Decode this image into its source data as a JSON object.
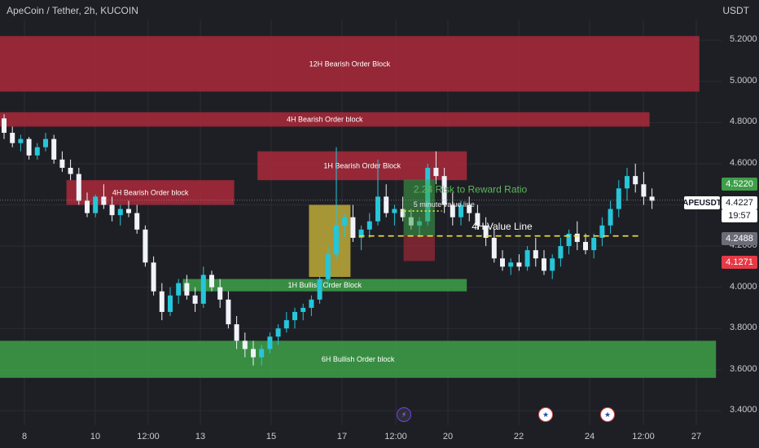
{
  "header": {
    "title": "ApeCoin / Tether, 2h, KUCOIN",
    "unit": "USDT"
  },
  "price_axis": [
    "5.2000",
    "5.0000",
    "4.8000",
    "4.6000",
    "4.4000",
    "4.2000",
    "4.0000",
    "3.8000",
    "3.6000",
    "3.4000"
  ],
  "time_axis": [
    "8",
    "10",
    "12:00",
    "13",
    "15",
    "17",
    "12:00",
    "20",
    "22",
    "24",
    "12:00",
    "27"
  ],
  "price_tags": {
    "symbol": "APEUSDT",
    "last": "4.4227",
    "timer": "19:57",
    "take_profit": "4.5220",
    "value_line": "4.2488",
    "stop_loss": "4.1271"
  },
  "events": {
    "bolt": "bolt-icon",
    "flags": [
      "us-flag-icon",
      "us-flag-icon"
    ]
  },
  "chart_data": {
    "type": "candlestick",
    "title": "ApeCoin / Tether, 2h, KUCOIN",
    "ylabel": "USDT",
    "ylim": [
      3.33,
      5.3
    ],
    "colors": {
      "up": "#26c6da",
      "down": "#f0f3fa",
      "bearish_zone": "#b02a3a",
      "bullish_zone": "#3fa64a",
      "consolidation": "#c8b43a"
    },
    "candles": [
      [
        4.82,
        4.84,
        4.72,
        4.75
      ],
      [
        4.75,
        4.78,
        4.68,
        4.7
      ],
      [
        4.7,
        4.74,
        4.66,
        4.72
      ],
      [
        4.72,
        4.73,
        4.62,
        4.64
      ],
      [
        4.64,
        4.7,
        4.62,
        4.68
      ],
      [
        4.68,
        4.75,
        4.66,
        4.72
      ],
      [
        4.72,
        4.74,
        4.6,
        4.62
      ],
      [
        4.62,
        4.66,
        4.56,
        4.58
      ],
      [
        4.58,
        4.62,
        4.52,
        4.55
      ],
      [
        4.55,
        4.58,
        4.4,
        4.42
      ],
      [
        4.42,
        4.46,
        4.34,
        4.36
      ],
      [
        4.36,
        4.45,
        4.34,
        4.44
      ],
      [
        4.44,
        4.5,
        4.38,
        4.4
      ],
      [
        4.4,
        4.44,
        4.32,
        4.35
      ],
      [
        4.35,
        4.4,
        4.3,
        4.38
      ],
      [
        4.38,
        4.42,
        4.34,
        4.36
      ],
      [
        4.36,
        4.4,
        4.26,
        4.28
      ],
      [
        4.28,
        4.3,
        4.1,
        4.12
      ],
      [
        4.12,
        4.15,
        3.96,
        3.98
      ],
      [
        3.98,
        4.02,
        3.84,
        3.88
      ],
      [
        3.88,
        4.0,
        3.86,
        3.96
      ],
      [
        3.96,
        4.04,
        3.92,
        4.02
      ],
      [
        4.02,
        4.06,
        3.94,
        3.96
      ],
      [
        3.96,
        4.0,
        3.88,
        3.92
      ],
      [
        3.92,
        4.1,
        3.9,
        4.06
      ],
      [
        4.06,
        4.08,
        3.98,
        4.0
      ],
      [
        4.0,
        4.04,
        3.9,
        3.94
      ],
      [
        3.94,
        3.98,
        3.8,
        3.82
      ],
      [
        3.82,
        3.86,
        3.7,
        3.74
      ],
      [
        3.74,
        3.78,
        3.66,
        3.7
      ],
      [
        3.7,
        3.74,
        3.62,
        3.66
      ],
      [
        3.66,
        3.72,
        3.62,
        3.7
      ],
      [
        3.7,
        3.78,
        3.68,
        3.76
      ],
      [
        3.76,
        3.82,
        3.72,
        3.8
      ],
      [
        3.8,
        3.88,
        3.78,
        3.84
      ],
      [
        3.84,
        3.9,
        3.8,
        3.88
      ],
      [
        3.88,
        3.92,
        3.84,
        3.9
      ],
      [
        3.9,
        3.96,
        3.86,
        3.94
      ],
      [
        3.94,
        4.06,
        3.92,
        4.04
      ],
      [
        4.04,
        4.2,
        4.0,
        4.16
      ],
      [
        4.16,
        4.68,
        4.14,
        4.3
      ],
      [
        4.3,
        4.36,
        4.24,
        4.34
      ],
      [
        4.34,
        4.4,
        4.22,
        4.24
      ],
      [
        4.24,
        4.3,
        4.18,
        4.28
      ],
      [
        4.28,
        4.36,
        4.24,
        4.32
      ],
      [
        4.32,
        4.62,
        4.3,
        4.44
      ],
      [
        4.44,
        4.5,
        4.34,
        4.36
      ],
      [
        4.36,
        4.4,
        4.3,
        4.38
      ],
      [
        4.38,
        4.44,
        4.32,
        4.34
      ],
      [
        4.34,
        4.38,
        4.28,
        4.3
      ],
      [
        4.3,
        4.34,
        4.24,
        4.32
      ],
      [
        4.32,
        4.6,
        4.3,
        4.58
      ],
      [
        4.58,
        4.66,
        4.5,
        4.54
      ],
      [
        4.54,
        4.58,
        4.36,
        4.4
      ],
      [
        4.4,
        4.46,
        4.3,
        4.34
      ],
      [
        4.34,
        4.42,
        4.3,
        4.4
      ],
      [
        4.4,
        4.44,
        4.32,
        4.36
      ],
      [
        4.36,
        4.4,
        4.28,
        4.3
      ],
      [
        4.3,
        4.34,
        4.2,
        4.24
      ],
      [
        4.24,
        4.28,
        4.12,
        4.14
      ],
      [
        4.14,
        4.18,
        4.08,
        4.1
      ],
      [
        4.1,
        4.14,
        4.06,
        4.12
      ],
      [
        4.12,
        4.16,
        4.08,
        4.1
      ],
      [
        4.1,
        4.2,
        4.08,
        4.18
      ],
      [
        4.18,
        4.24,
        4.1,
        4.14
      ],
      [
        4.14,
        4.18,
        4.06,
        4.08
      ],
      [
        4.08,
        4.16,
        4.04,
        4.14
      ],
      [
        4.14,
        4.24,
        4.1,
        4.2
      ],
      [
        4.2,
        4.28,
        4.16,
        4.26
      ],
      [
        4.26,
        4.32,
        4.18,
        4.22
      ],
      [
        4.22,
        4.26,
        4.16,
        4.18
      ],
      [
        4.18,
        4.26,
        4.14,
        4.24
      ],
      [
        4.24,
        4.34,
        4.2,
        4.3
      ],
      [
        4.3,
        4.42,
        4.26,
        4.38
      ],
      [
        4.38,
        4.52,
        4.34,
        4.48
      ],
      [
        4.48,
        4.58,
        4.42,
        4.54
      ],
      [
        4.54,
        4.6,
        4.46,
        4.5
      ],
      [
        4.5,
        4.56,
        4.4,
        4.44
      ],
      [
        4.44,
        4.48,
        4.38,
        4.42
      ]
    ],
    "zones": [
      {
        "label": "12H Bearish Order Block",
        "x0": 0,
        "x1": 84,
        "y0": 4.95,
        "y1": 5.22,
        "kind": "bearish"
      },
      {
        "label": "4H Bearish Order block",
        "x0": 0,
        "x1": 78,
        "y0": 4.78,
        "y1": 4.85,
        "kind": "bearish"
      },
      {
        "label": "4H Bearish Order block",
        "x0": 8,
        "x1": 28,
        "y0": 4.4,
        "y1": 4.52,
        "kind": "bearish"
      },
      {
        "label": "1H Bearish Order Block",
        "x0": 31,
        "x1": 56,
        "y0": 4.52,
        "y1": 4.66,
        "kind": "bearish"
      },
      {
        "label": "1H Bullish Order Block",
        "x0": 22,
        "x1": 56,
        "y0": 3.98,
        "y1": 4.04,
        "kind": "bullish"
      },
      {
        "label": "6H Bullish Order block",
        "x0": 0,
        "x1": 86,
        "y0": 3.56,
        "y1": 3.74,
        "kind": "bullish"
      }
    ],
    "consolidation_box": {
      "x0": 37,
      "x1": 42,
      "y0": 4.05,
      "y1": 4.4
    },
    "annotations": [
      {
        "text": "2.24 Risk to Reward Ratio",
        "x": 49,
        "y": 4.46,
        "color": "#5cb85c"
      },
      {
        "text": "5 minute value line",
        "x": 49,
        "y": 4.39,
        "color": "#e6e6e6"
      },
      {
        "text": "4H Value Line",
        "x": 56,
        "y": 4.28,
        "color": "#ffffff"
      }
    ],
    "lines": [
      {
        "name": "4H Value Line",
        "y": 4.2488,
        "x0": 43,
        "x1": 77,
        "style": "dashed",
        "color": "#f5e13a"
      },
      {
        "name": "5 minute value line",
        "y": 4.37,
        "x0": 48,
        "x1": 53,
        "style": "dotted",
        "color": "#f5e13a"
      }
    ],
    "position": {
      "entry": 4.2488,
      "take_profit": 4.522,
      "stop_loss": 4.1271,
      "x0": 48,
      "x1": 50
    },
    "grid": true,
    "legend": "none"
  }
}
